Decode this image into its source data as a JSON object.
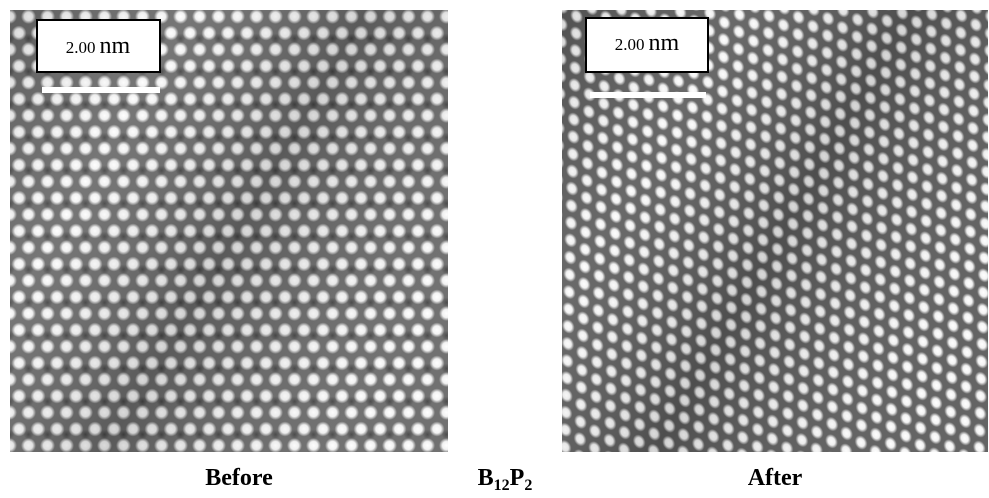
{
  "panels": [
    {
      "caption": "Before",
      "scale_bar": {
        "value": "2.00",
        "unit": "nm"
      }
    },
    {
      "caption": "After",
      "scale_bar": {
        "value": "2.00",
        "unit": "nm"
      }
    }
  ],
  "formula": {
    "b": "B",
    "b_sub": "12",
    "p": "P",
    "p_sub": "2"
  }
}
